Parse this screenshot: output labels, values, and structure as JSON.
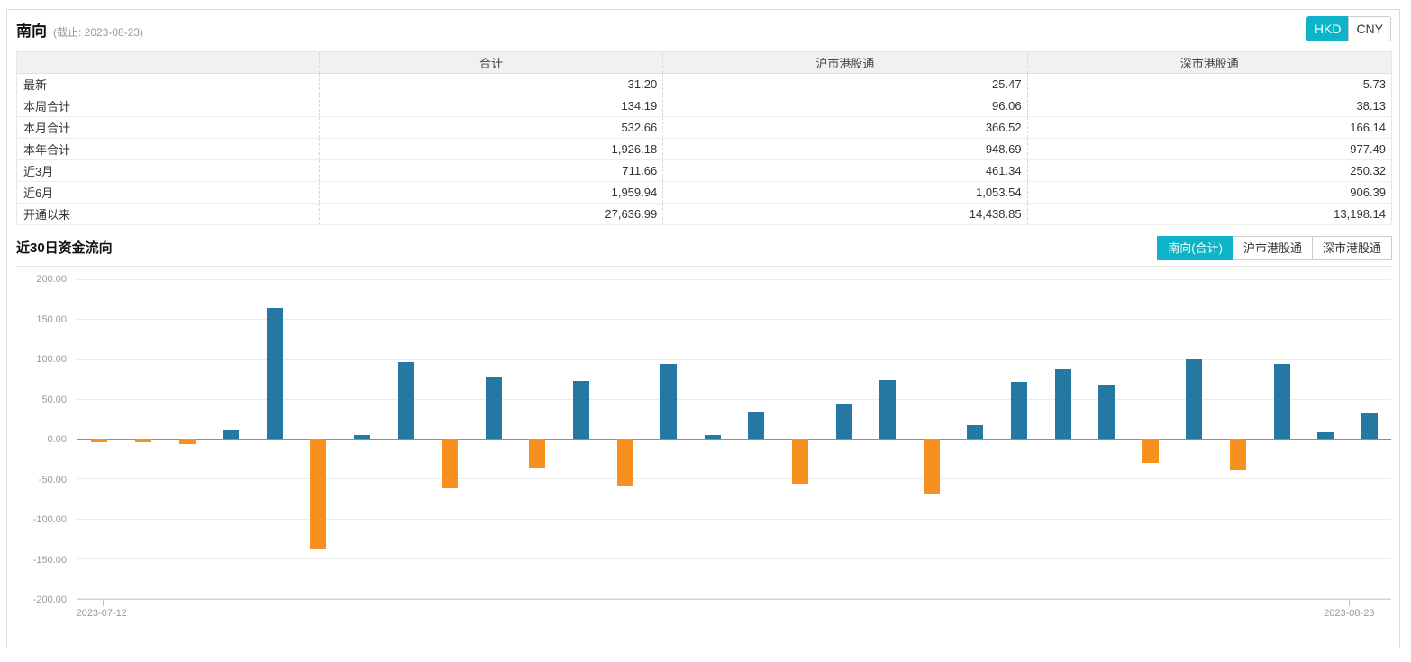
{
  "header": {
    "title": "南向",
    "subtitle": "(截止: 2023-08-23)",
    "currency_tabs": [
      {
        "label": "HKD",
        "active": true
      },
      {
        "label": "CNY",
        "active": false
      }
    ]
  },
  "table": {
    "columns": [
      "",
      "合计",
      "沪市港股通",
      "深市港股通"
    ],
    "rows": [
      {
        "label": "最新",
        "values": [
          "31.20",
          "25.47",
          "5.73"
        ]
      },
      {
        "label": "本周合计",
        "values": [
          "134.19",
          "96.06",
          "38.13"
        ]
      },
      {
        "label": "本月合计",
        "values": [
          "532.66",
          "366.52",
          "166.14"
        ]
      },
      {
        "label": "本年合计",
        "values": [
          "1,926.18",
          "948.69",
          "977.49"
        ]
      },
      {
        "label": "近3月",
        "values": [
          "711.66",
          "461.34",
          "250.32"
        ]
      },
      {
        "label": "近6月",
        "values": [
          "1,959.94",
          "1,053.54",
          "906.39"
        ]
      },
      {
        "label": "开通以来",
        "values": [
          "27,636.99",
          "14,438.85",
          "13,198.14"
        ]
      }
    ]
  },
  "chart_section": {
    "title": "近30日资金流向",
    "tabs": [
      {
        "label": "南向(合计)",
        "active": true
      },
      {
        "label": "沪市港股通",
        "active": false
      },
      {
        "label": "深市港股通",
        "active": false
      }
    ]
  },
  "chart_data": {
    "type": "bar",
    "title": "近30日资金流向",
    "x_labels_visible": [
      "2023-07-12",
      "2023-08-23"
    ],
    "values": [
      -5,
      -4,
      -7,
      11,
      164,
      -139,
      4,
      96,
      -62,
      77,
      -37,
      72,
      -60,
      94,
      4,
      34,
      -57,
      44,
      73,
      -69,
      17,
      71,
      87,
      68,
      -31,
      99,
      -40,
      94,
      8,
      31.2
    ],
    "ylim": [
      -200,
      200
    ],
    "y_tick_labels": [
      "200.00",
      "150.00",
      "100.00",
      "50.00",
      "0.00",
      "-50.00",
      "-100.00",
      "-150.00",
      "-200.00"
    ],
    "grid": true,
    "legend_position": "none",
    "positive_color": "#2478a2",
    "negative_color": "#f6901e"
  },
  "theme": {
    "accent": "#0db3c6"
  }
}
